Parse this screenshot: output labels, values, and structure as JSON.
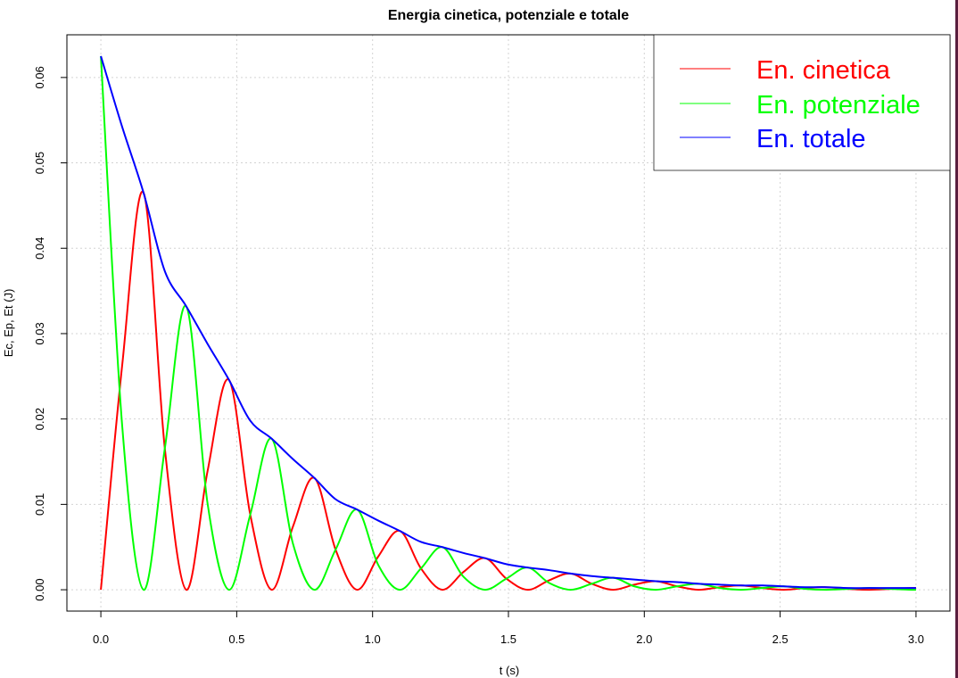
{
  "chart_data": {
    "type": "line",
    "title": "Energia cinetica, potenziale e totale",
    "xlabel": "t (s)",
    "ylabel": "Ec, Ep, Et (J)",
    "xlim": [
      -0.125,
      3.125
    ],
    "ylim": [
      -0.0025,
      0.065
    ],
    "x_ticks": [
      0.0,
      0.5,
      1.0,
      1.5,
      2.0,
      2.5,
      3.0
    ],
    "x_tick_labels": [
      "0.0",
      "0.5",
      "1.0",
      "1.5",
      "2.0",
      "2.5",
      "3.0"
    ],
    "y_ticks": [
      0.0,
      0.01,
      0.02,
      0.03,
      0.04,
      0.05,
      0.06
    ],
    "y_tick_labels": [
      "0.00",
      "0.01",
      "0.02",
      "0.03",
      "0.04",
      "0.05",
      "0.06"
    ],
    "grid": true,
    "legend_position": "top-right",
    "series": [
      {
        "name": "En. cinetica",
        "color": "#ff0000",
        "x": [
          0.0,
          0.0785,
          0.1571,
          0.2356,
          0.3142,
          0.3927,
          0.4712,
          0.5498,
          0.6283,
          0.7069,
          0.7854,
          0.8639,
          0.9425,
          1.021,
          1.0996,
          1.1781,
          1.2566,
          1.3352,
          1.4137,
          1.4923,
          1.5708,
          1.6493,
          1.7279,
          1.8064,
          1.885,
          1.9635,
          2.042,
          2.1206,
          2.1991,
          2.2777,
          2.3562,
          2.4347,
          2.5133,
          2.5918,
          2.6704,
          2.7489,
          2.8274,
          2.906,
          2.9845,
          3.0
        ],
        "y": [
          0.0,
          0.0263,
          0.0465,
          0.0165,
          0.0,
          0.0139,
          0.0246,
          0.0088,
          0.0,
          0.0074,
          0.0131,
          0.0047,
          0.0,
          0.0039,
          0.0069,
          0.0025,
          0.0,
          0.0021,
          0.0037,
          0.0013,
          0.0,
          0.0011,
          0.0019,
          0.0007,
          0.0,
          0.0006,
          0.001,
          0.0004,
          0.0,
          0.0003,
          0.0005,
          0.0002,
          0.0,
          0.0002,
          0.0003,
          0.0001,
          0.0,
          0.0001,
          0.0002,
          0.0002
        ]
      },
      {
        "name": "En. potenziale",
        "color": "#00ff00",
        "x": [
          0.0,
          0.0785,
          0.1571,
          0.2356,
          0.3142,
          0.3927,
          0.4712,
          0.5498,
          0.6283,
          0.7069,
          0.7854,
          0.8639,
          0.9425,
          1.021,
          1.0996,
          1.1781,
          1.2566,
          1.3352,
          1.4137,
          1.4923,
          1.5708,
          1.6493,
          1.7279,
          1.8064,
          1.885,
          1.9635,
          2.042,
          2.1206,
          2.1991,
          2.2777,
          2.3562,
          2.4347,
          2.5133,
          2.5918,
          2.6704,
          2.7489,
          2.8274,
          2.906,
          2.9845,
          3.0
        ],
        "y": [
          0.0625,
          0.0192,
          0.0,
          0.0166,
          0.0332,
          0.0101,
          0.0,
          0.0088,
          0.0177,
          0.0054,
          0.0,
          0.0047,
          0.0094,
          0.0029,
          0.0,
          0.0025,
          0.005,
          0.0015,
          0.0,
          0.0013,
          0.0026,
          0.0008,
          0.0,
          0.0007,
          0.0014,
          0.0004,
          0.0,
          0.0004,
          0.0007,
          0.0002,
          0.0,
          0.0002,
          0.0004,
          0.0001,
          0.0,
          0.0001,
          0.0002,
          0.0001,
          0.0,
          0.0
        ]
      },
      {
        "name": "En. totale",
        "color": "#0000ff",
        "x": [
          0.0,
          0.0785,
          0.1571,
          0.2356,
          0.3142,
          0.3927,
          0.4712,
          0.5498,
          0.6283,
          0.7069,
          0.7854,
          0.8639,
          0.9425,
          1.021,
          1.0996,
          1.1781,
          1.2566,
          1.3352,
          1.4137,
          1.4923,
          1.5708,
          1.6493,
          1.7279,
          1.8064,
          1.885,
          1.9635,
          2.042,
          2.1206,
          2.1991,
          2.2777,
          2.3562,
          2.4347,
          2.5133,
          2.5918,
          2.6704,
          2.7489,
          2.8274,
          2.906,
          2.9845,
          3.0
        ],
        "y": [
          0.0625,
          0.0542,
          0.0465,
          0.0373,
          0.0332,
          0.0288,
          0.0246,
          0.0198,
          0.0177,
          0.0153,
          0.0131,
          0.0106,
          0.0094,
          0.0081,
          0.0069,
          0.0056,
          0.005,
          0.0043,
          0.0037,
          0.003,
          0.0026,
          0.0023,
          0.0019,
          0.0016,
          0.0014,
          0.0012,
          0.001,
          0.0009,
          0.0007,
          0.0006,
          0.0005,
          0.0005,
          0.0004,
          0.0003,
          0.0003,
          0.0002,
          0.0002,
          0.0002,
          0.0002,
          0.0002
        ]
      }
    ]
  }
}
